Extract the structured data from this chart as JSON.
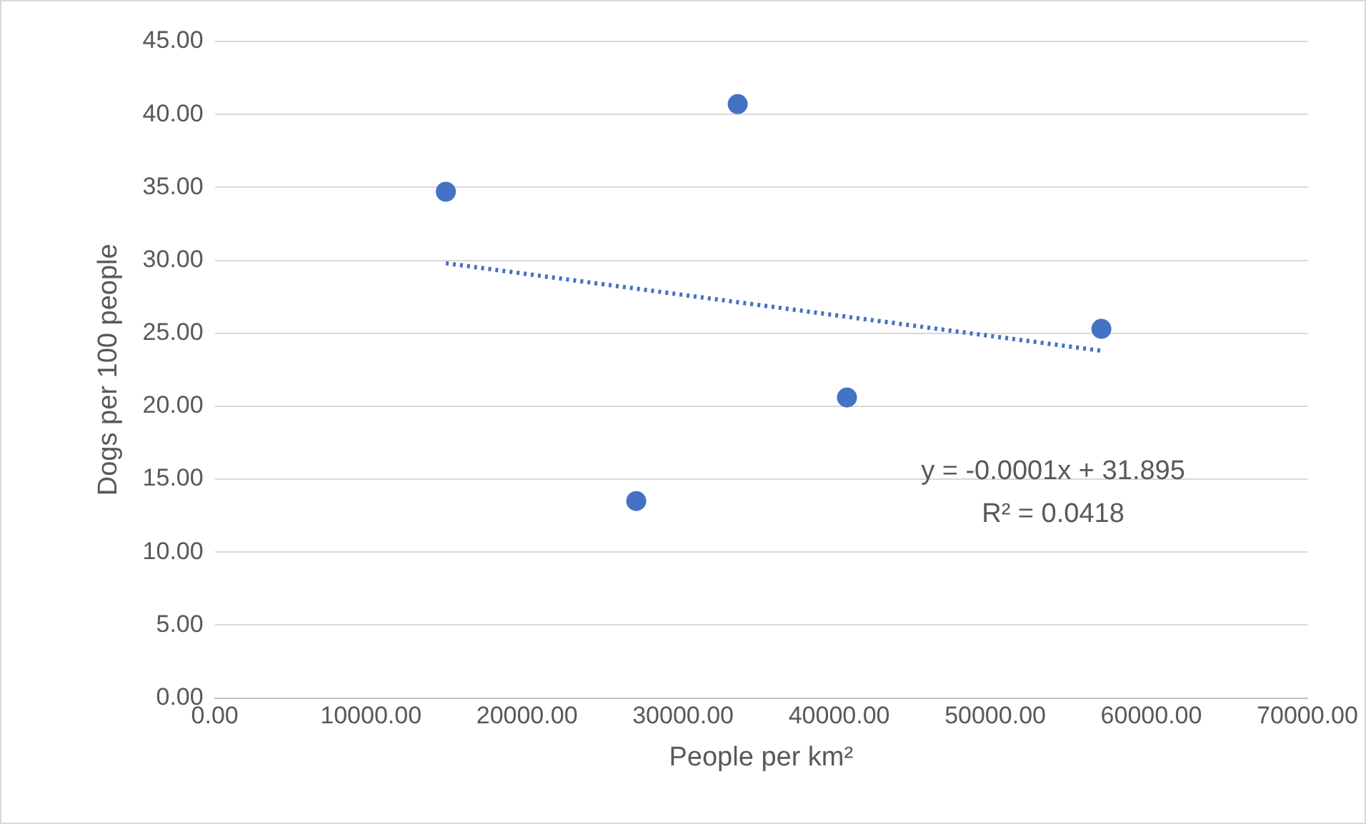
{
  "chart_data": {
    "type": "scatter",
    "xlabel": "People per km²",
    "ylabel": "Dogs per 100 people",
    "xlim": [
      0,
      70000
    ],
    "xticks": [
      {
        "value": 0,
        "label": "0.00"
      },
      {
        "value": 10000,
        "label": "10000.00"
      },
      {
        "value": 20000,
        "label": "20000.00"
      },
      {
        "value": 30000,
        "label": "30000.00"
      },
      {
        "value": 40000,
        "label": "40000.00"
      },
      {
        "value": 50000,
        "label": "50000.00"
      },
      {
        "value": 60000,
        "label": "60000.00"
      },
      {
        "value": 70000,
        "label": "70000.00"
      }
    ],
    "ylim": [
      0,
      45
    ],
    "yticks": [
      {
        "value": 0,
        "label": "0.00"
      },
      {
        "value": 5,
        "label": "5.00"
      },
      {
        "value": 10,
        "label": "10.00"
      },
      {
        "value": 15,
        "label": "15.00"
      },
      {
        "value": 20,
        "label": "20.00"
      },
      {
        "value": 25,
        "label": "25.00"
      },
      {
        "value": 30,
        "label": "30.00"
      },
      {
        "value": 35,
        "label": "35.00"
      },
      {
        "value": 40,
        "label": "40.00"
      },
      {
        "value": 45,
        "label": "45.00"
      }
    ],
    "grid": "y",
    "legend": false,
    "series": [
      {
        "type": "scatter",
        "marker": "circle",
        "color": "#4472c4",
        "x": [
          14800,
          33500,
          27000,
          40500,
          56800
        ],
        "values": [
          34.7,
          40.7,
          13.5,
          20.6,
          25.3
        ]
      },
      {
        "type": "line",
        "marker": "none",
        "line_style": "dotted",
        "color": "#4472c4",
        "x": [
          14800,
          56800
        ],
        "values": [
          29.8,
          23.8
        ]
      }
    ],
    "annotations": [
      "y = -0.0001x + 31.895",
      "R² = 0.0418"
    ]
  }
}
